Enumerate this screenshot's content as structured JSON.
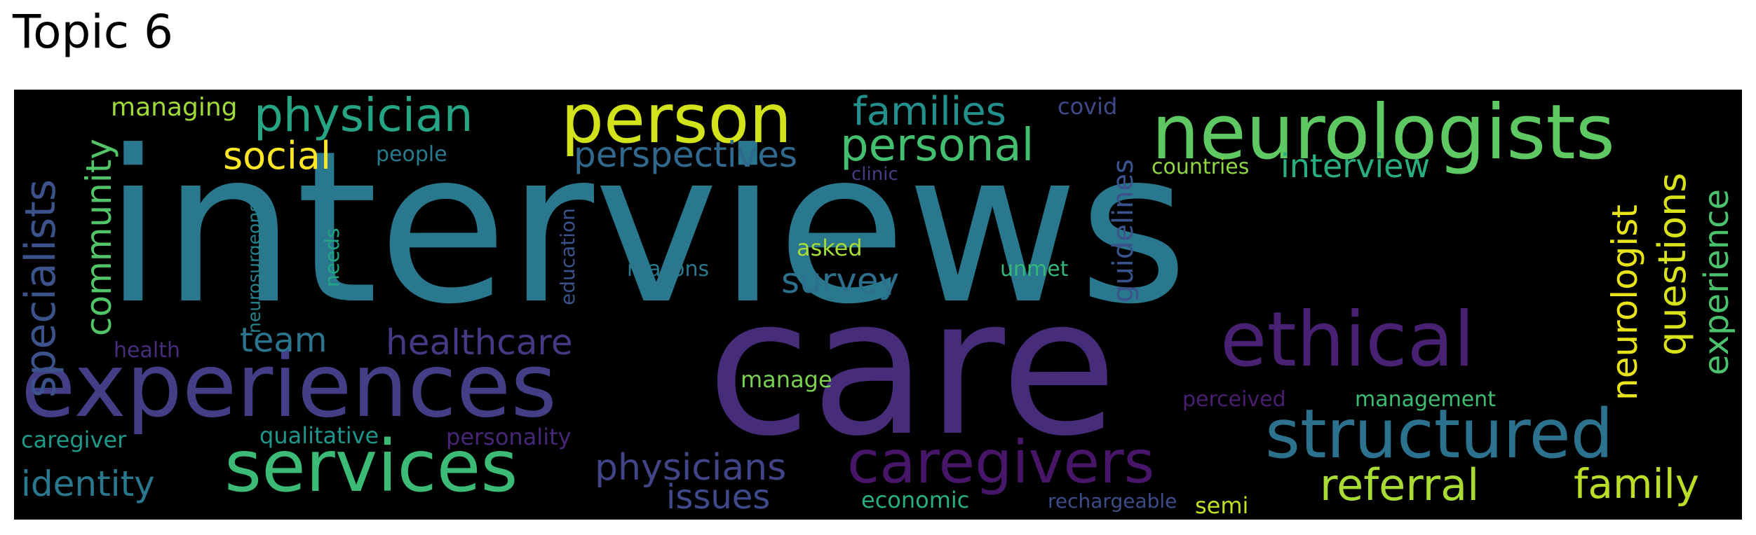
{
  "title": "Topic 6",
  "colors": {
    "background": "#000000",
    "title_text": "#000000"
  },
  "words": [
    {
      "id": "interviews",
      "text": "interviews",
      "color": "#2a788e"
    },
    {
      "id": "care",
      "text": "care",
      "color": "#472c7a"
    },
    {
      "id": "neurologists",
      "text": "neurologists",
      "color": "#5ec962"
    },
    {
      "id": "person",
      "text": "person",
      "color": "#d2e21b"
    },
    {
      "id": "experiences",
      "text": "experiences",
      "color": "#433e85"
    },
    {
      "id": "structured",
      "text": "structured",
      "color": "#2c728e"
    },
    {
      "id": "services",
      "text": "services",
      "color": "#3bbb75"
    },
    {
      "id": "caregivers",
      "text": "caregivers",
      "color": "#481668"
    },
    {
      "id": "ethical",
      "text": "ethical",
      "color": "#482173"
    },
    {
      "id": "physician",
      "text": "physician",
      "color": "#25a584"
    },
    {
      "id": "personal",
      "text": "personal",
      "color": "#44bf70"
    },
    {
      "id": "referral",
      "text": "referral",
      "color": "#a8db34"
    },
    {
      "id": "family",
      "text": "family",
      "color": "#bade28"
    },
    {
      "id": "identity",
      "text": "identity",
      "color": "#2a788e"
    },
    {
      "id": "physicians",
      "text": "physicians",
      "color": "#414487"
    },
    {
      "id": "families",
      "text": "families",
      "color": "#22908c"
    },
    {
      "id": "social",
      "text": "social",
      "color": "#fde725"
    },
    {
      "id": "perspectives",
      "text": "perspectives",
      "color": "#31688e"
    },
    {
      "id": "interview",
      "text": "interview",
      "color": "#29af7f"
    },
    {
      "id": "specialists",
      "text": "specialists",
      "color": "#3b528b"
    },
    {
      "id": "community",
      "text": "community",
      "color": "#52c569"
    },
    {
      "id": "neurologist",
      "text": "neurologist",
      "color": "#e8e419"
    },
    {
      "id": "questions",
      "text": "questions",
      "color": "#d8e219"
    },
    {
      "id": "experience",
      "text": "experience",
      "color": "#4ac16d"
    },
    {
      "id": "healthcare",
      "text": "healthcare",
      "color": "#443983"
    },
    {
      "id": "survey",
      "text": "survey",
      "color": "#2d708e"
    },
    {
      "id": "issues",
      "text": "issues",
      "color": "#3e4a89"
    },
    {
      "id": "team",
      "text": "team",
      "color": "#2b758e"
    },
    {
      "id": "guidelines",
      "text": "guidelines",
      "color": "#3a538b"
    },
    {
      "id": "managing",
      "text": "managing",
      "color": "#a0da39"
    },
    {
      "id": "covid",
      "text": "covid",
      "color": "#3e4989"
    },
    {
      "id": "countries",
      "text": "countries",
      "color": "#8fd744"
    },
    {
      "id": "people",
      "text": "people",
      "color": "#287c8e"
    },
    {
      "id": "clinic",
      "text": "clinic",
      "color": "#433e85"
    },
    {
      "id": "neurosurgeons",
      "text": "neurosurgeons",
      "color": "#26828e"
    },
    {
      "id": "needs",
      "text": "needs",
      "color": "#21a685"
    },
    {
      "id": "education",
      "text": "education",
      "color": "#3b528b"
    },
    {
      "id": "asked",
      "text": "asked",
      "color": "#a5db36"
    },
    {
      "id": "reasons",
      "text": "reasons",
      "color": "#2a778e"
    },
    {
      "id": "unmet",
      "text": "unmet",
      "color": "#35b779"
    },
    {
      "id": "health",
      "text": "health",
      "color": "#472d7b"
    },
    {
      "id": "manage",
      "text": "manage",
      "color": "#7ad151"
    },
    {
      "id": "perceived",
      "text": "perceived",
      "color": "#481f70"
    },
    {
      "id": "management",
      "text": "management",
      "color": "#3fbc73"
    },
    {
      "id": "caregiver",
      "text": "caregiver",
      "color": "#1f9a8a"
    },
    {
      "id": "qualitative",
      "text": "qualitative",
      "color": "#1f968b"
    },
    {
      "id": "personality",
      "text": "personality",
      "color": "#482677"
    },
    {
      "id": "economic",
      "text": "economic",
      "color": "#29af7f"
    },
    {
      "id": "rechargeable",
      "text": "rechargeable",
      "color": "#3d4d8a"
    },
    {
      "id": "semi",
      "text": "semi",
      "color": "#c2df23"
    }
  ]
}
